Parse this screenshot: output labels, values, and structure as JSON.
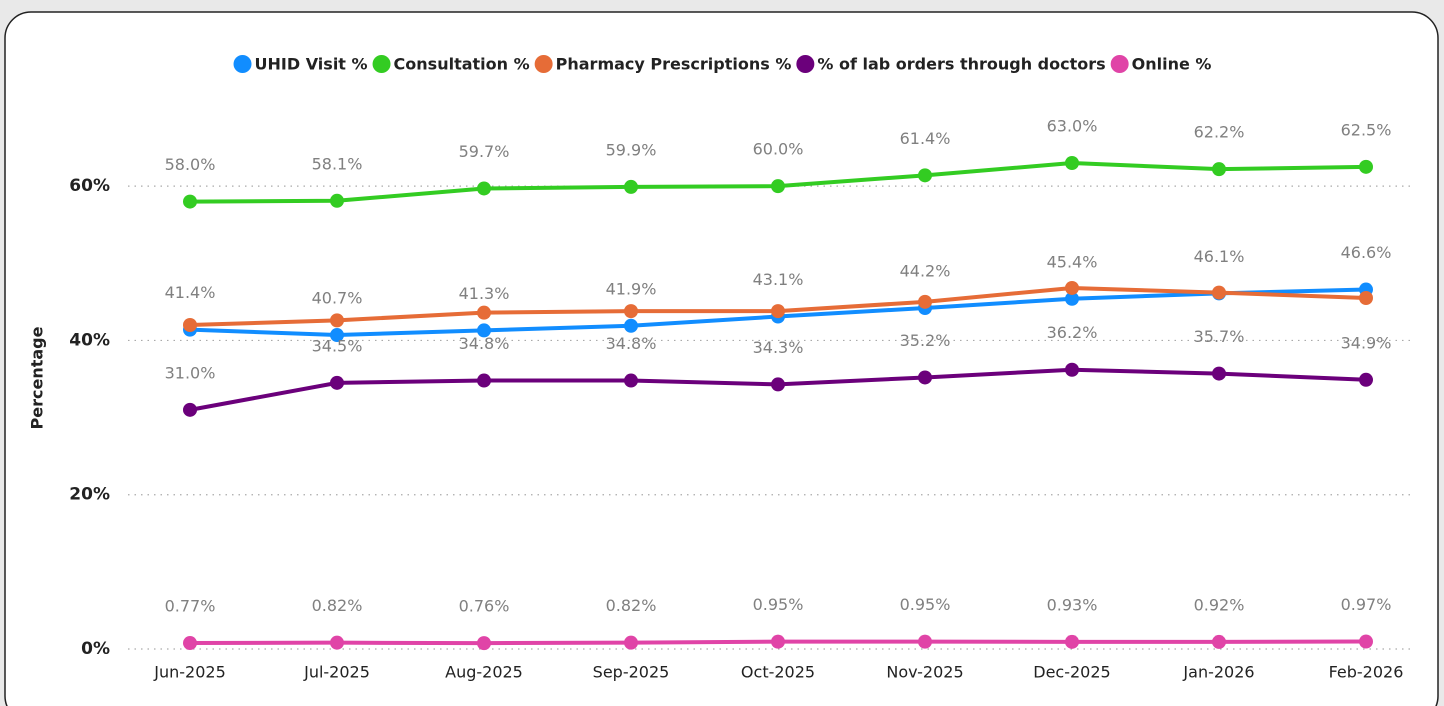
{
  "chart_data": {
    "type": "line",
    "y_label": "Percentage",
    "categories": [
      "Jun-2025",
      "Jul-2025",
      "Aug-2025",
      "Sep-2025",
      "Oct-2025",
      "Nov-2025",
      "Dec-2025",
      "Jan-2026",
      "Feb-2026"
    ],
    "ylim": [
      0,
      70
    ],
    "yticks": [
      {
        "value": 0,
        "label": "0%"
      },
      {
        "value": 20,
        "label": "20%"
      },
      {
        "value": 40,
        "label": "40%"
      },
      {
        "value": 60,
        "label": "60%"
      }
    ],
    "grid": true,
    "legend": "top",
    "series": [
      {
        "name": "UHID Visit %",
        "color": "#118DFF",
        "values": [
          41.4,
          40.7,
          41.3,
          41.9,
          43.1,
          44.2,
          45.4,
          46.1,
          46.6
        ],
        "value_labels": [
          "41.4%",
          "40.7%",
          "41.3%",
          "41.9%",
          "43.1%",
          "44.2%",
          "45.4%",
          "46.1%",
          "46.6%"
        ]
      },
      {
        "name": "Consultation %",
        "color": "#33CC22",
        "values": [
          58.0,
          58.1,
          59.7,
          59.9,
          60.0,
          61.4,
          63.0,
          62.2,
          62.5
        ],
        "value_labels": [
          "58.0%",
          "58.1%",
          "59.7%",
          "59.9%",
          "60.0%",
          "61.4%",
          "63.0%",
          "62.2%",
          "62.5%"
        ]
      },
      {
        "name": "Pharmacy Prescriptions %",
        "color": "#E66C37",
        "values": [
          42.0,
          42.6,
          43.6,
          43.8,
          43.8,
          45.0,
          46.8,
          46.2,
          45.5
        ]
      },
      {
        "name": "% of lab orders through doctors",
        "color": "#6B007B",
        "values": [
          31.0,
          34.5,
          34.8,
          34.8,
          34.3,
          35.2,
          36.2,
          35.7,
          34.9
        ],
        "value_labels": [
          "31.0%",
          "34.5%",
          "34.8%",
          "34.8%",
          "34.3%",
          "35.2%",
          "36.2%",
          "35.7%",
          "34.9%"
        ]
      },
      {
        "name": "Online %",
        "color": "#E044A7",
        "values": [
          0.77,
          0.82,
          0.76,
          0.82,
          0.95,
          0.95,
          0.93,
          0.92,
          0.97
        ],
        "value_labels": [
          "0.77%",
          "0.82%",
          "0.76%",
          "0.82%",
          "0.95%",
          "0.95%",
          "0.93%",
          "0.92%",
          "0.97%"
        ]
      }
    ]
  }
}
